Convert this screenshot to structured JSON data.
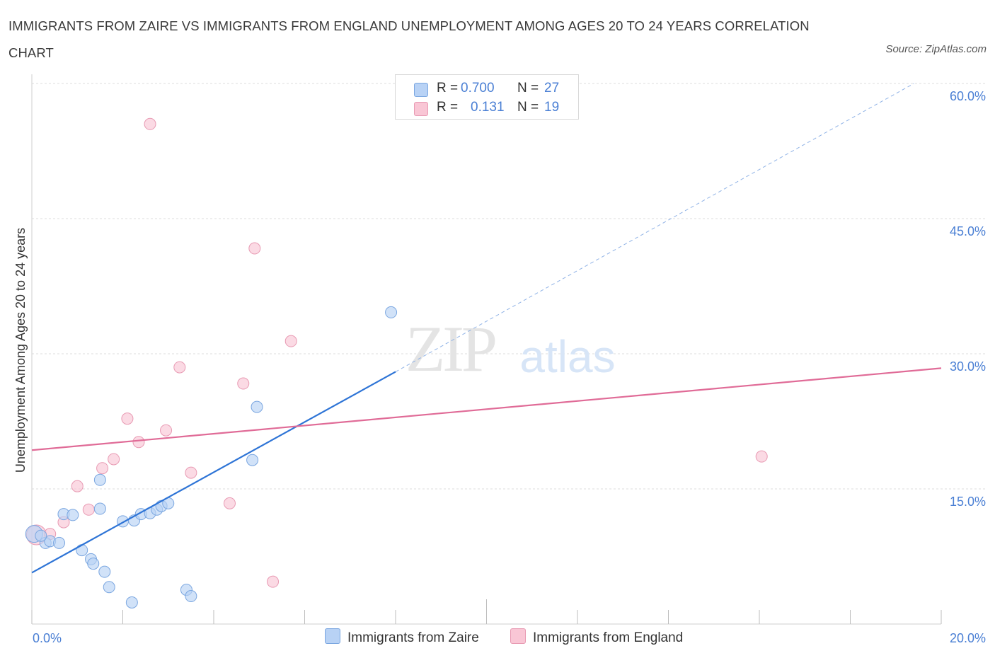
{
  "title": "IMMIGRANTS FROM ZAIRE VS IMMIGRANTS FROM ENGLAND UNEMPLOYMENT AMONG AGES 20 TO 24 YEARS CORRELATION CHART",
  "source": "Source: ZipAtlas.com",
  "watermark": {
    "zip": "ZIP",
    "atlas": "atlas"
  },
  "colors": {
    "zaire_fill": "#b8d2f5",
    "zaire_stroke": "#7aa6e0",
    "zaire_line": "#2e74d6",
    "england_fill": "#f9c6d5",
    "england_stroke": "#e89ab3",
    "england_line": "#e06b97",
    "accent_text": "#4a7fd4"
  },
  "legend": {
    "rows": [
      {
        "r_label": "R =",
        "r_value": "0.700",
        "n_label": "N =",
        "n_value": "27"
      },
      {
        "r_label": "R =",
        "r_value": "0.131",
        "n_label": "N =",
        "n_value": "19"
      }
    ]
  },
  "chart_data": {
    "type": "scatter",
    "title": "IMMIGRANTS FROM ZAIRE VS IMMIGRANTS FROM ENGLAND UNEMPLOYMENT AMONG AGES 20 TO 24 YEARS CORRELATION CHART",
    "xlabel": "",
    "ylabel": "Unemployment Among Ages 20 to 24 years",
    "xlim": [
      0,
      20
    ],
    "ylim": [
      0,
      60
    ],
    "x_tick_labels": [
      "0.0%",
      "20.0%"
    ],
    "y_tick_labels": [
      "15.0%",
      "30.0%",
      "45.0%",
      "60.0%"
    ],
    "y_tick_values": [
      15,
      30,
      45,
      60
    ],
    "grid": true,
    "legend_position": "top-center",
    "series": [
      {
        "name": "Immigrants from Zaire",
        "r": 0.7,
        "n": 27,
        "points": [
          [
            0.05,
            10.0
          ],
          [
            0.3,
            9.0
          ],
          [
            0.4,
            9.2
          ],
          [
            0.6,
            9.0
          ],
          [
            0.7,
            12.2
          ],
          [
            0.9,
            12.1
          ],
          [
            1.1,
            8.2
          ],
          [
            1.3,
            7.2
          ],
          [
            1.35,
            6.7
          ],
          [
            1.5,
            12.8
          ],
          [
            1.5,
            16.0
          ],
          [
            1.6,
            5.8
          ],
          [
            1.7,
            4.1
          ],
          [
            2.0,
            11.4
          ],
          [
            2.25,
            11.5
          ],
          [
            2.2,
            2.4
          ],
          [
            2.4,
            12.2
          ],
          [
            2.6,
            12.3
          ],
          [
            2.75,
            12.7
          ],
          [
            2.85,
            13.1
          ],
          [
            3.0,
            13.4
          ],
          [
            3.4,
            3.8
          ],
          [
            3.5,
            3.1
          ],
          [
            4.85,
            18.2
          ],
          [
            4.95,
            24.1
          ],
          [
            7.9,
            34.6
          ],
          [
            0.2,
            9.8
          ]
        ],
        "trend": {
          "x0": 0,
          "y0": 5.7,
          "x1": 8.0,
          "y1": 28.0,
          "dashed_to_x": 19.4,
          "dashed_to_y": 60.0
        }
      },
      {
        "name": "Immigrants from England",
        "r": 0.131,
        "n": 19,
        "points": [
          [
            0.1,
            9.9
          ],
          [
            0.4,
            10.0
          ],
          [
            0.7,
            11.3
          ],
          [
            1.0,
            15.3
          ],
          [
            1.25,
            12.7
          ],
          [
            1.55,
            17.3
          ],
          [
            1.8,
            18.3
          ],
          [
            2.1,
            22.8
          ],
          [
            2.35,
            20.2
          ],
          [
            2.6,
            55.5
          ],
          [
            2.95,
            21.5
          ],
          [
            3.25,
            28.5
          ],
          [
            3.5,
            16.8
          ],
          [
            4.35,
            13.4
          ],
          [
            4.65,
            26.7
          ],
          [
            4.9,
            41.7
          ],
          [
            5.3,
            4.7
          ],
          [
            5.7,
            31.4
          ],
          [
            16.05,
            18.6
          ]
        ],
        "trend": {
          "x0": 0,
          "y0": 19.3,
          "x1": 20,
          "y1": 28.4
        }
      }
    ]
  },
  "bottom_legend": {
    "zaire_label": "Immigrants from Zaire",
    "england_label": "Immigrants from England"
  }
}
